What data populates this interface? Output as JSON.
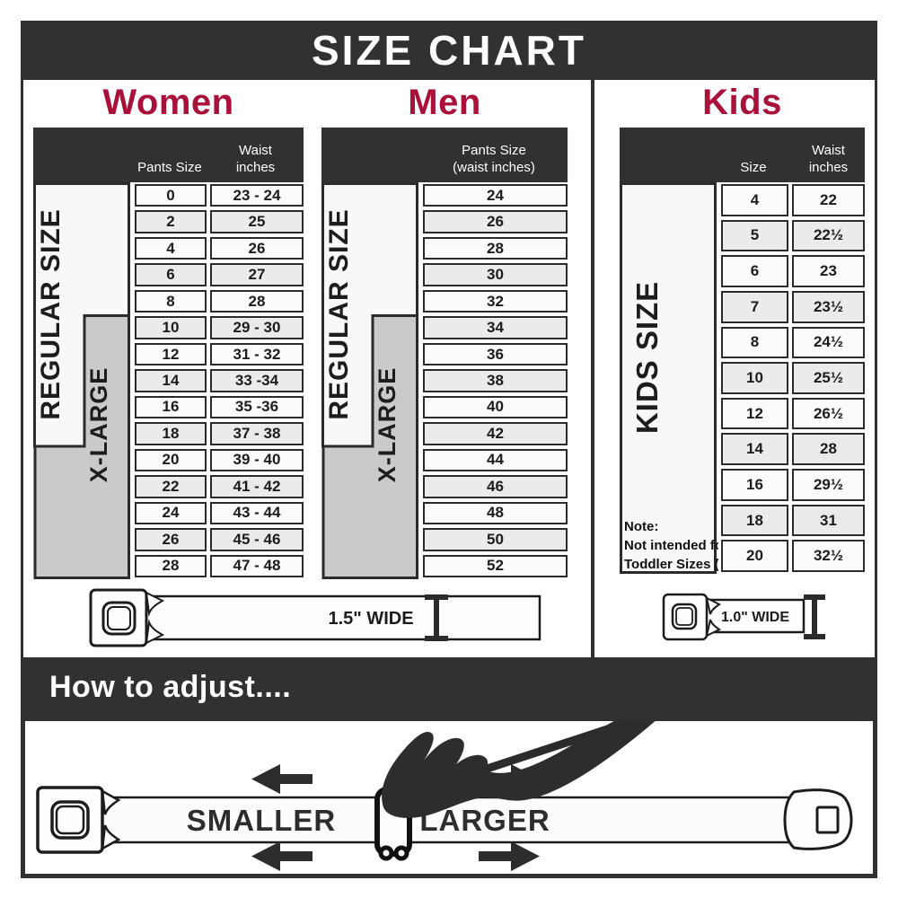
{
  "title": "SIZE CHART",
  "colors": {
    "dark_bar": "#323031",
    "accent_red": "#a8113a",
    "xlarge_gray": "#cacaca"
  },
  "women": {
    "heading": "Women",
    "col1_header": "Pants Size",
    "col2_header_line1": "Waist",
    "col2_header_line2": "inches",
    "regular_label": "REGULAR SIZE",
    "xlarge_label": "X-LARGE",
    "rows": [
      [
        "0",
        "23 - 24"
      ],
      [
        "2",
        "25"
      ],
      [
        "4",
        "26"
      ],
      [
        "6",
        "27"
      ],
      [
        "8",
        "28"
      ],
      [
        "10",
        "29 - 30"
      ],
      [
        "12",
        "31 - 32"
      ],
      [
        "14",
        "33 -34"
      ],
      [
        "16",
        "35 -36"
      ],
      [
        "18",
        "37 - 38"
      ],
      [
        "20",
        "39 - 40"
      ],
      [
        "22",
        "41 - 42"
      ],
      [
        "24",
        "43 - 44"
      ],
      [
        "26",
        "45 - 46"
      ],
      [
        "28",
        "47 - 48"
      ]
    ]
  },
  "men": {
    "heading": "Men",
    "col_header_line1": "Pants Size",
    "col_header_line2": "(waist inches)",
    "regular_label": "REGULAR SIZE",
    "xlarge_label": "X-LARGE",
    "rows": [
      "24",
      "26",
      "28",
      "30",
      "32",
      "34",
      "36",
      "38",
      "40",
      "42",
      "44",
      "46",
      "48",
      "50",
      "52"
    ]
  },
  "kids": {
    "heading": "Kids",
    "col1_header": "Size",
    "col2_header_line1": "Waist",
    "col2_header_line2": "inches",
    "label": "KIDS SIZE",
    "note_line1": "Note:",
    "note_line2": "Not intended for",
    "note_line3": "Toddler Sizes (T)",
    "rows": [
      [
        "4",
        "22"
      ],
      [
        "5",
        "22½"
      ],
      [
        "6",
        "23"
      ],
      [
        "7",
        "23½"
      ],
      [
        "8",
        "24½"
      ],
      [
        "10",
        "25½"
      ],
      [
        "12",
        "26½"
      ],
      [
        "14",
        "28"
      ],
      [
        "16",
        "29½"
      ],
      [
        "18",
        "31"
      ],
      [
        "20",
        "32½"
      ]
    ]
  },
  "belts": {
    "adult_width_label": "1.5\" WIDE",
    "kids_width_label": "1.0\" WIDE"
  },
  "adjust": {
    "heading": "How to adjust....",
    "smaller_label": "SMALLER",
    "larger_label": "LARGER"
  }
}
